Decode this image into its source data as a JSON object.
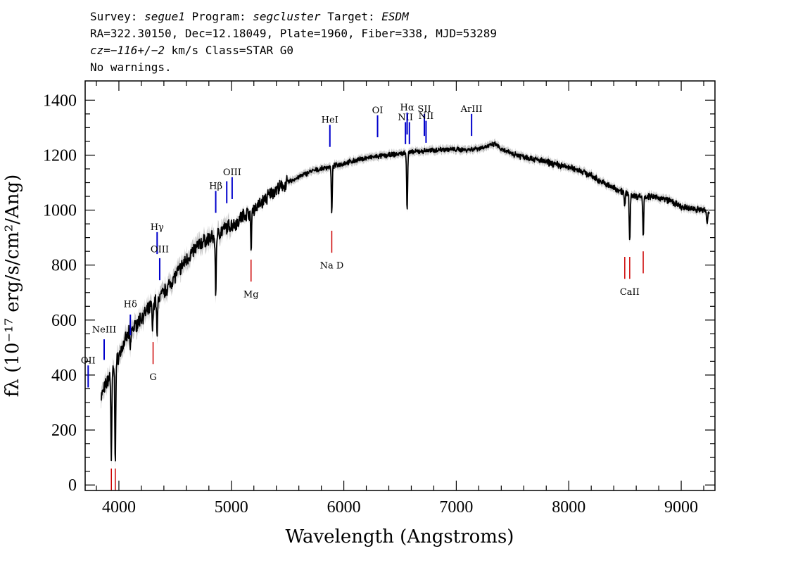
{
  "header": {
    "survey_label": "Survey:",
    "survey": "segue1",
    "program_label": "Program:",
    "program": "segcluster",
    "target_label": "Target:",
    "target": "ESDM",
    "line2": "RA=322.30150, Dec=12.18049, Plate=1960, Fiber=338, MJD=53289",
    "cz": "cz=−116+/−2",
    "cz_rest": " km/s Class=STAR G0",
    "line4": "No warnings."
  },
  "chart_data": {
    "type": "line",
    "xlabel": "Wavelength (Angstroms)",
    "ylabel": "fλ (10⁻¹⁷ erg/s/cm²/Ang)",
    "xlim": [
      3700,
      9300
    ],
    "ylim": [
      -20,
      1470
    ],
    "x_ticks": [
      4000,
      5000,
      6000,
      7000,
      8000,
      9000
    ],
    "y_ticks": [
      0,
      200,
      400,
      600,
      800,
      1000,
      1200,
      1400
    ],
    "continuum": {
      "x": [
        3840,
        3900,
        3950,
        4000,
        4050,
        4100,
        4150,
        4200,
        4250,
        4300,
        4350,
        4400,
        4450,
        4500,
        4550,
        4600,
        4650,
        4700,
        4750,
        4800,
        4850,
        4900,
        4950,
        5000,
        5050,
        5100,
        5150,
        5200,
        5250,
        5300,
        5350,
        5400,
        5450,
        5500,
        5550,
        5600,
        5650,
        5700,
        5750,
        5800,
        5850,
        5900,
        5950,
        6000,
        6100,
        6200,
        6300,
        6400,
        6500,
        6600,
        6700,
        6800,
        6900,
        7000,
        7100,
        7200,
        7300,
        7350,
        7400,
        7500,
        7600,
        7700,
        7800,
        7900,
        8000,
        8100,
        8200,
        8300,
        8400,
        8500,
        8600,
        8700,
        8800,
        8900,
        9000,
        9100,
        9200,
        9250
      ],
      "y": [
        320,
        380,
        420,
        470,
        520,
        560,
        580,
        610,
        630,
        660,
        680,
        700,
        730,
        760,
        790,
        820,
        845,
        870,
        885,
        895,
        900,
        920,
        935,
        945,
        955,
        980,
        990,
        1005,
        1020,
        1040,
        1060,
        1075,
        1085,
        1100,
        1110,
        1120,
        1130,
        1140,
        1145,
        1150,
        1155,
        1160,
        1165,
        1170,
        1180,
        1190,
        1195,
        1200,
        1205,
        1210,
        1215,
        1218,
        1222,
        1220,
        1220,
        1225,
        1235,
        1240,
        1220,
        1205,
        1195,
        1185,
        1175,
        1165,
        1155,
        1145,
        1125,
        1100,
        1080,
        1065,
        1050,
        1050,
        1045,
        1035,
        1010,
        1005,
        1000,
        990
      ]
    },
    "absorption": [
      {
        "x": 3933,
        "y": 90
      },
      {
        "x": 3968,
        "y": 100
      },
      {
        "x": 4102,
        "y": 490
      },
      {
        "x": 4300,
        "y": 560
      },
      {
        "x": 4340,
        "y": 540
      },
      {
        "x": 4861,
        "y": 700
      },
      {
        "x": 5175,
        "y": 850
      },
      {
        "x": 5893,
        "y": 990
      },
      {
        "x": 6563,
        "y": 1000
      },
      {
        "x": 8498,
        "y": 1010
      },
      {
        "x": 8542,
        "y": 880
      },
      {
        "x": 8662,
        "y": 910
      },
      {
        "x": 9230,
        "y": 950
      }
    ],
    "emission_lines": [
      {
        "label": "OII",
        "x": 3727,
        "y0": 355,
        "y1": 435,
        "label_y": 455
      },
      {
        "label": "NeIII",
        "x": 3869,
        "y0": 455,
        "y1": 530,
        "label_y": 568
      },
      {
        "label": "Hδ",
        "x": 4102,
        "y0": 545,
        "y1": 620,
        "label_y": 660
      },
      {
        "label": "Hγ",
        "x": 4340,
        "y0": 840,
        "y1": 920,
        "label_y": 940
      },
      {
        "label": "OIII",
        "x": 4363,
        "y0": 745,
        "y1": 825,
        "label_y": 860
      },
      {
        "label": "Hβ",
        "x": 4861,
        "y0": 990,
        "y1": 1070,
        "label_y": 1090
      },
      {
        "label": "",
        "x": 4959,
        "y0": 1025,
        "y1": 1105,
        "label_y": 1125
      },
      {
        "label": "OIII",
        "x": 5007,
        "y0": 1040,
        "y1": 1120,
        "label_y": 1140
      },
      {
        "label": "HeI",
        "x": 5876,
        "y0": 1230,
        "y1": 1310,
        "label_y": 1330
      },
      {
        "label": "OI",
        "x": 6300,
        "y0": 1265,
        "y1": 1345,
        "label_y": 1365
      },
      {
        "label": "NII",
        "x": 6548,
        "y0": 1240,
        "y1": 1320,
        "label_y": 1340
      },
      {
        "label": "Hα",
        "x": 6563,
        "y0": 1275,
        "y1": 1355,
        "label_y": 1375
      },
      {
        "label": "",
        "x": 6583,
        "y0": 1240,
        "y1": 1320,
        "label_y": 1340
      },
      {
        "label": "SII",
        "x": 6716,
        "y0": 1270,
        "y1": 1350,
        "label_y": 1370
      },
      {
        "label": "NII",
        "x": 6731,
        "y0": 1245,
        "y1": 1325,
        "label_y": 1345
      },
      {
        "label": "ArIII",
        "x": 7136,
        "y0": 1270,
        "y1": 1350,
        "label_y": 1370
      }
    ],
    "absorption_lines": [
      {
        "label": "",
        "x": 3933,
        "y0": -20,
        "y1": 60,
        "label_y": 0
      },
      {
        "label": "",
        "x": 3968,
        "y0": -20,
        "y1": 60,
        "label_y": 0
      },
      {
        "label": "G",
        "x": 4304,
        "y0": 440,
        "y1": 520,
        "label_y": 395
      },
      {
        "label": "Mg",
        "x": 5175,
        "y0": 740,
        "y1": 820,
        "label_y": 695
      },
      {
        "label": "Na D",
        "x": 5893,
        "y0": 845,
        "y1": 925,
        "label_y": 800
      },
      {
        "label": "",
        "x": 8498,
        "y0": 750,
        "y1": 830,
        "label_y": 0
      },
      {
        "label": "CaII",
        "x": 8542,
        "y0": 750,
        "y1": 830,
        "label_y": 705
      },
      {
        "label": "",
        "x": 8662,
        "y0": 770,
        "y1": 850,
        "label_y": 0
      }
    ],
    "colors": {
      "spectrum": "#000000",
      "error_band": "#c8c8c8",
      "emission": "#0000cc",
      "absorption": "#cc0000"
    },
    "grid": false,
    "legend": "none"
  }
}
